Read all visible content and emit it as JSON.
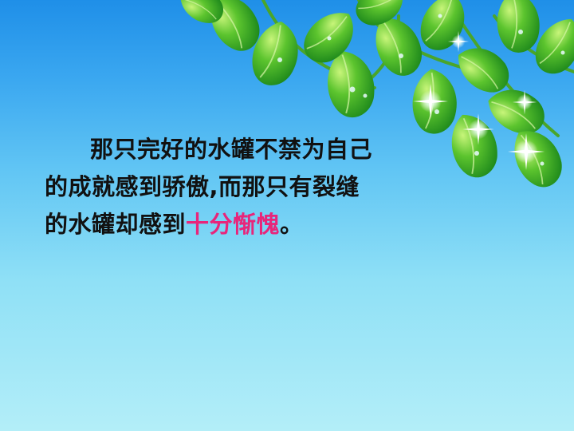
{
  "slide": {
    "lines": [
      "那只完好的水罐不禁为自己",
      "的成就感到骄傲,而那只有裂缝",
      "的水罐却感到"
    ],
    "highlight_text": "十分惭愧",
    "end_punct": "。"
  },
  "colors": {
    "sky_top": "#1f8fe8",
    "sky_bottom": "#b3eef8",
    "leaf_green": "#3fae2a",
    "highlight": "#e8257a",
    "text": "#111111"
  },
  "decoration": {
    "foliage": "green-leaves-with-sparkles"
  }
}
